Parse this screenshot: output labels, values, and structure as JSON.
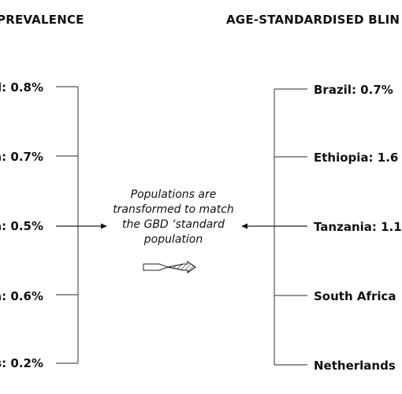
{
  "left": {
    "header": "PREVALENCE",
    "items": [
      {
        "label": "il: 0.8%"
      },
      {
        "label": "a: 0.7%"
      },
      {
        "label": "a: 0.5%"
      },
      {
        "label": "a: 0.6%"
      },
      {
        "label": "s: 0.2%"
      }
    ]
  },
  "right": {
    "header": "AGE-STANDARDISED BLIN",
    "items": [
      {
        "label": "Brazil: 0.7%"
      },
      {
        "label": "Ethiopia: 1.6"
      },
      {
        "label": "Tanzania: 1.1"
      },
      {
        "label": "South Africa"
      },
      {
        "label": "Netherlands"
      }
    ]
  },
  "center_note": "Populations are transformed to match the GBD ‘standard population",
  "colors": {
    "line": "#555555",
    "arrow": "#111111",
    "text": "#111111"
  },
  "icons": {
    "transform_arrow": "hatched-arrow-icon"
  }
}
